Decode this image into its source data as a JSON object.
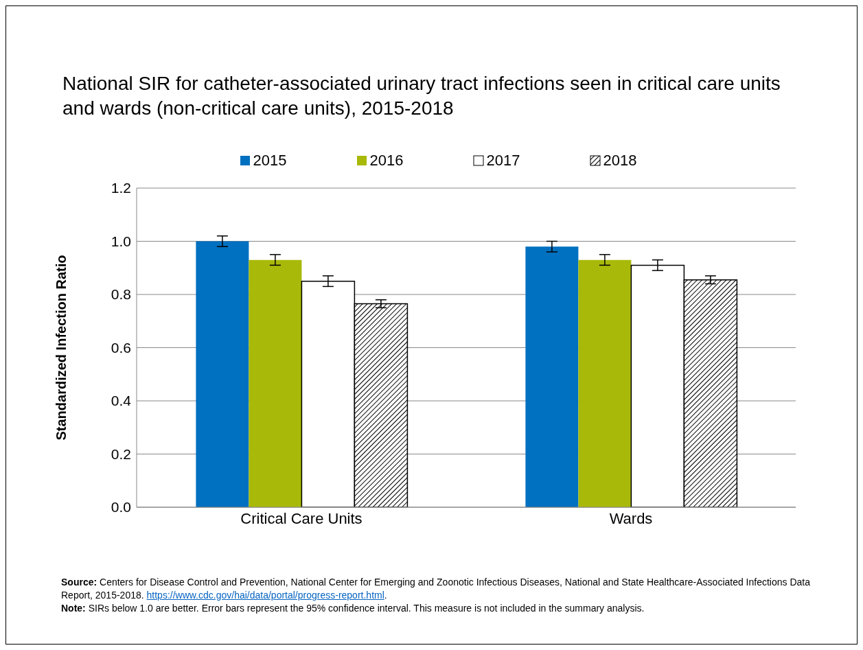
{
  "chart_data": {
    "type": "bar",
    "title": "National SIR for catheter-associated urinary tract infections seen in critical care units and wards (non-critical care units), 2015-2018",
    "ylabel": "Standardized Infection Ratio",
    "categories": [
      "Critical Care Units",
      "Wards"
    ],
    "series": [
      {
        "name": "2015",
        "color": "#0070c0",
        "values": [
          1.0,
          0.98
        ],
        "errors": [
          0.02,
          0.02
        ]
      },
      {
        "name": "2016",
        "color": "#a9b90a",
        "values": [
          0.93,
          0.93
        ],
        "errors": [
          0.02,
          0.02
        ]
      },
      {
        "name": "2017",
        "color": "#ffffff",
        "values": [
          0.85,
          0.91
        ],
        "errors": [
          0.02,
          0.02
        ]
      },
      {
        "name": "2018",
        "color": "#000000",
        "values": [
          0.765,
          0.855
        ],
        "errors": [
          0.015,
          0.015
        ]
      }
    ],
    "ylim": [
      0,
      1.2
    ],
    "yticks": [
      {
        "value": 0,
        "label": "0.0"
      },
      {
        "value": 0.2,
        "label": "0.2"
      },
      {
        "value": 0.4,
        "label": "0.4"
      },
      {
        "value": 0.6,
        "label": "0.6"
      },
      {
        "value": 0.8,
        "label": "0.8"
      },
      {
        "value": 1,
        "label": "1.0"
      },
      {
        "value": 1.2,
        "label": "1.2"
      }
    ],
    "grid": "y",
    "legend": "top",
    "annotations": [
      "Source: Centers for Disease Control and Prevention, National Center for Emerging and Zoonotic Infectious Diseases, National and State Healthcare-Associated Infections Data Report, 2015-2018. https://www.cdc.gov/hai/data/portal/progress-report.html.",
      "Note: SIRs below 1.0 are better. Error bars represent the 95% confidence interval. This measure is not included in the summary analysis."
    ]
  }
}
